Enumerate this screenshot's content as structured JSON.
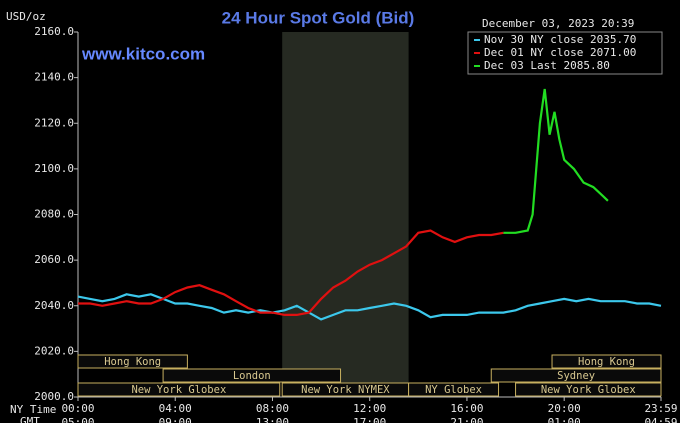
{
  "chart_data": {
    "type": "line",
    "title": "24 Hour Spot Gold (Bid)",
    "y_label": "USD/oz",
    "watermark": "www.kitco.com",
    "timestamp": "December 03, 2023 20:39",
    "x_label": "NY Time",
    "x2_label": "GMT",
    "xlim": [
      0,
      23.983
    ],
    "xticks": [
      {
        "value": 0,
        "label": "00:00"
      },
      {
        "value": 4,
        "label": "04:00"
      },
      {
        "value": 8,
        "label": "08:00"
      },
      {
        "value": 12,
        "label": "12:00"
      },
      {
        "value": 16,
        "label": "16:00"
      },
      {
        "value": 20,
        "label": "20:00"
      },
      {
        "value": 23.983,
        "label": "23:59"
      }
    ],
    "x2ticks": [
      "05:00",
      "09:00",
      "13:00",
      "17:00",
      "21:00",
      "01:00",
      "04:59"
    ],
    "ylim": [
      2000,
      2160
    ],
    "yticks": [
      {
        "value": 2000,
        "label": "2000.0"
      },
      {
        "value": 2020,
        "label": "2020.0"
      },
      {
        "value": 2040,
        "label": "2040.0"
      },
      {
        "value": 2060,
        "label": "2060.0"
      },
      {
        "value": 2080,
        "label": "2080.0"
      },
      {
        "value": 2100,
        "label": "2100.0"
      },
      {
        "value": 2120,
        "label": "2120.0"
      },
      {
        "value": 2140,
        "label": "2140.0"
      },
      {
        "value": 2160,
        "label": "2160.0"
      }
    ],
    "legend": "top-right",
    "series": [
      {
        "name": "Nov 30 NY close 2035.70",
        "color": "#3cc8ec",
        "x": [
          0,
          0.5,
          1,
          1.5,
          2,
          2.5,
          3,
          3.5,
          4,
          4.5,
          5,
          5.5,
          6,
          6.5,
          7,
          7.5,
          8,
          8.5,
          9,
          9.5,
          10,
          10.5,
          11,
          11.5,
          12,
          12.5,
          13,
          13.5,
          14,
          14.5,
          15,
          15.5,
          16,
          16.5,
          17,
          17.5,
          18,
          18.5,
          19,
          19.5,
          20,
          20.5,
          21,
          21.5,
          22,
          22.5,
          23,
          23.5,
          23.983
        ],
        "values": [
          2044,
          2043,
          2042,
          2043,
          2045,
          2044,
          2045,
          2043,
          2041,
          2041,
          2040,
          2039,
          2037,
          2038,
          2037,
          2038,
          2037,
          2038,
          2040,
          2037,
          2034,
          2036,
          2038,
          2038,
          2039,
          2040,
          2041,
          2040,
          2038,
          2035,
          2036,
          2036,
          2036,
          2037,
          2037,
          2037,
          2038,
          2040,
          2041,
          2042,
          2043,
          2042,
          2043,
          2042,
          2042,
          2042,
          2041,
          2041,
          2040
        ]
      },
      {
        "name": "Dec 01 NY close 2071.00",
        "color": "#e01010",
        "x": [
          0,
          0.5,
          1,
          1.5,
          2,
          2.5,
          3,
          3.5,
          4,
          4.5,
          5,
          5.5,
          6,
          6.5,
          7,
          7.5,
          8,
          8.5,
          9,
          9.5,
          10,
          10.5,
          11,
          11.5,
          12,
          12.5,
          13,
          13.5,
          14,
          14.5,
          15,
          15.5,
          16,
          16.5,
          17,
          17.5
        ],
        "values": [
          2041,
          2041,
          2040,
          2041,
          2042,
          2041,
          2041,
          2043,
          2046,
          2048,
          2049,
          2047,
          2045,
          2042,
          2039,
          2037,
          2037,
          2036,
          2036,
          2037,
          2043,
          2048,
          2051,
          2055,
          2058,
          2060,
          2063,
          2066,
          2072,
          2073,
          2070,
          2068,
          2070,
          2071,
          2071,
          2072
        ]
      },
      {
        "name": "Dec 03 Last 2085.80",
        "color": "#22dd22",
        "x": [
          17.5,
          18,
          18.5,
          18.7,
          19,
          19.2,
          19.4,
          19.6,
          19.8,
          20,
          20.4,
          20.8,
          21.2,
          21.6,
          21.8
        ],
        "values": [
          2072,
          2072,
          2073,
          2080,
          2120,
          2135,
          2115,
          2125,
          2113,
          2104,
          2100,
          2094,
          2092,
          2088,
          2086
        ]
      }
    ],
    "session_rows": [
      [
        {
          "label": "Hong Kong",
          "start": 0,
          "end": 4.5
        },
        {
          "label": "Hong Kong",
          "start": 19.5,
          "end": 23.983
        }
      ],
      [
        {
          "label": "London",
          "start": 3.5,
          "end": 10.8
        },
        {
          "label": "Sydney",
          "start": 17,
          "end": 23.983
        }
      ],
      [
        {
          "label": "New York Globex",
          "start": 0,
          "end": 8.3
        },
        {
          "label": "New York NYMEX",
          "start": 8.4,
          "end": 13.6,
          "shaded": true
        },
        {
          "label": "NY Globex",
          "start": 13.6,
          "end": 17.3
        },
        {
          "label": "New York Globex",
          "start": 18,
          "end": 23.983
        }
      ]
    ]
  }
}
